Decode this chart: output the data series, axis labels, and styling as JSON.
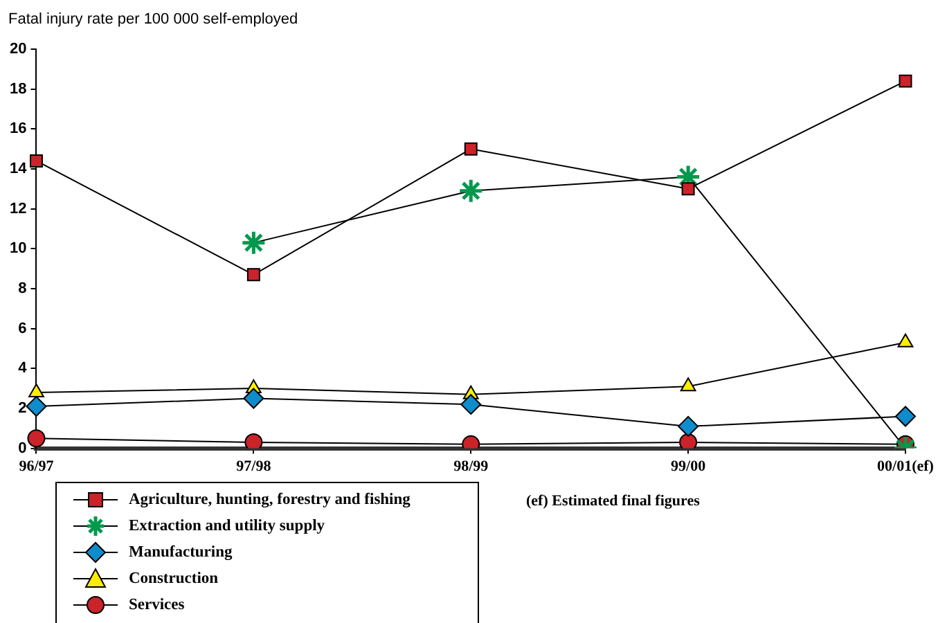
{
  "chart_data": {
    "type": "line",
    "ylabel": "Fatal injury rate per 100 000 self-employed",
    "categories": [
      "96/97",
      "97/98",
      "98/99",
      "99/00",
      "00/01(ef)"
    ],
    "ylim": [
      0,
      20
    ],
    "yticks": [
      0,
      2,
      4,
      6,
      8,
      10,
      12,
      14,
      16,
      18,
      20
    ],
    "grid": false,
    "legend": "bottom left",
    "annotations": [
      "(ef) Estimated final figures"
    ],
    "series": [
      {
        "name": "Agriculture, hunting, forestry and fishing",
        "color": "#cc2229",
        "marker": "square",
        "values": [
          14.4,
          8.7,
          15.0,
          13.0,
          18.4
        ]
      },
      {
        "name": "Extraction and utility supply",
        "color": "#00994c",
        "marker": "cross",
        "values": [
          null,
          10.3,
          12.9,
          13.6,
          0
        ]
      },
      {
        "name": "Manufacturing",
        "color": "#0e8ccc",
        "marker": "diamond",
        "values": [
          2.1,
          2.5,
          2.2,
          1.1,
          1.6
        ]
      },
      {
        "name": "Construction",
        "color": "#ffee00",
        "marker": "triangle",
        "values": [
          2.8,
          3.0,
          2.7,
          3.1,
          5.3
        ]
      },
      {
        "name": "Services",
        "color": "#cc2229",
        "marker": "circle",
        "values": [
          0.5,
          0.3,
          0.2,
          0.3,
          0.2
        ]
      }
    ]
  }
}
